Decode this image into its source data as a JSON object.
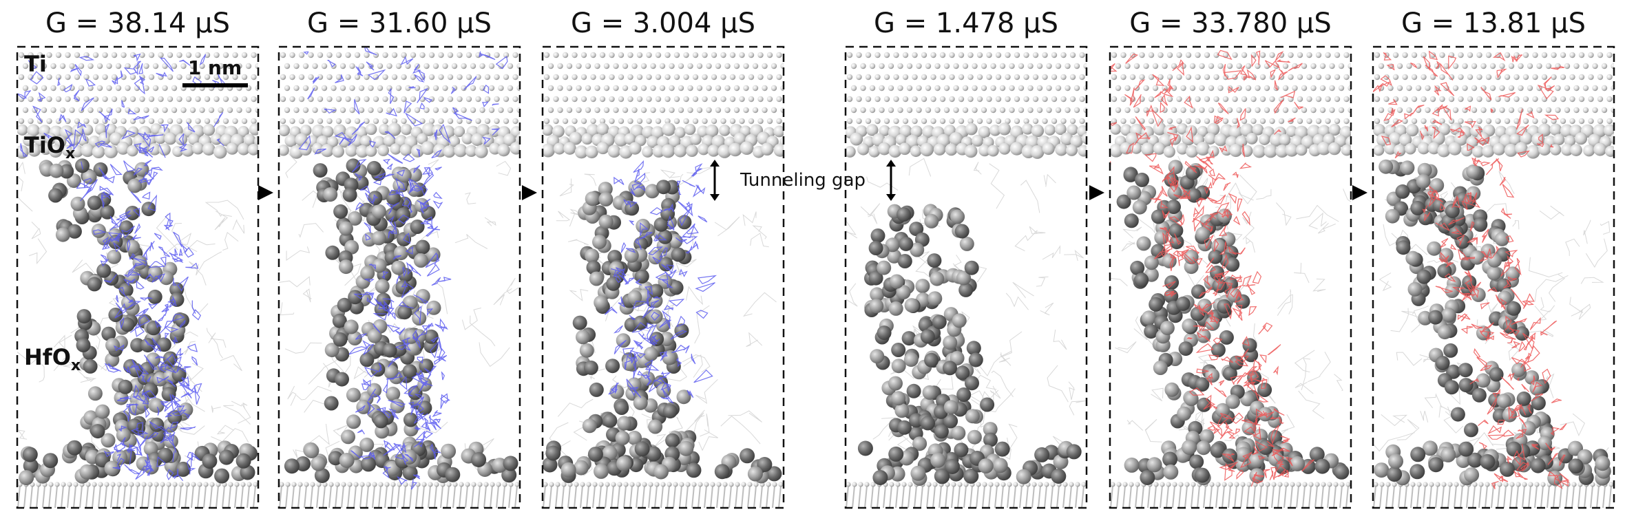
{
  "panels": [
    {
      "id": "p1",
      "title": "G = 38.14 µS",
      "state": "set",
      "density_color": "#5b5bf0",
      "density_level": 1.0,
      "gap": false
    },
    {
      "id": "p2",
      "title": "G = 31.60 µS",
      "state": "set",
      "density_color": "#5b5bf0",
      "density_level": 0.85,
      "gap": false
    },
    {
      "id": "p3",
      "title": "G = 3.004 µS",
      "state": "reset",
      "density_color": "#5b5bf0",
      "density_level": 0.45,
      "gap": true
    },
    {
      "id": "p4",
      "title": "G = 1.478 µS",
      "state": "reset",
      "density_color": "#5b5bf0",
      "density_level": 0.0,
      "gap": true
    },
    {
      "id": "p5",
      "title": "G = 33.780 µS",
      "state": "set",
      "density_color": "#ee5555",
      "density_level": 1.0,
      "gap": false
    },
    {
      "id": "p6",
      "title": "G = 13.81 µS",
      "state": "set",
      "density_color": "#ee5555",
      "density_level": 0.8,
      "gap": false
    }
  ],
  "labels": {
    "top_electrode": "Ti",
    "interface_prefix": "TiO",
    "interface_sub": "x",
    "oxide_prefix": "HfO",
    "oxide_sub": "x",
    "scale_bar": "1 nm",
    "gap_label": "Tunneling gap"
  },
  "colors": {
    "frame": "#111111",
    "ti_atom": "#d4d4d4",
    "vacancy_atom": "#6e6e6e",
    "lattice_line": "#cfcfcf",
    "blue_density": "#5b5bf0",
    "red_density": "#ee5555"
  }
}
